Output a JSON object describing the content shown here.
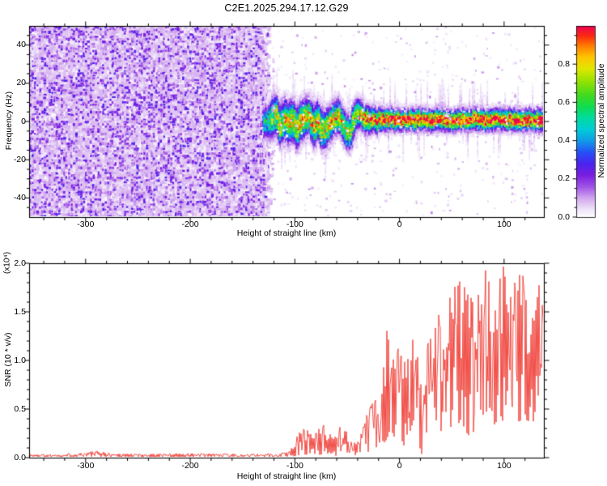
{
  "title": "C2E1.2025.294.17.12.G29",
  "figure": {
    "background": "#ffffff",
    "axis_color": "#000000"
  },
  "chart_data": [
    {
      "type": "heatmap",
      "title": "C2E1.2025.294.17.12.G29",
      "xlabel": "Height of straight line (km)",
      "ylabel": "Frequency (Hz)",
      "xlim": [
        -354,
        138
      ],
      "ylim": [
        -50,
        50
      ],
      "grid": false,
      "x_axis": {
        "ticks": [
          -300,
          -200,
          -100,
          0,
          100
        ],
        "ticklabels": [
          "-300",
          "-200",
          "-100",
          "0",
          "100"
        ],
        "minor_step": 20
      },
      "y_axis": {
        "ticks": [
          -40,
          -20,
          0,
          20,
          40
        ],
        "ticklabels": [
          "-40",
          "-20",
          "0",
          "20",
          "40"
        ],
        "minor_step": 5
      },
      "colorbar": {
        "label": "Normalized spectral amplitude",
        "range": [
          0,
          1
        ],
        "ticks": [
          0,
          0.2,
          0.4,
          0.6,
          0.8
        ],
        "ticklabels": [
          "0.0",
          "0.2",
          "0.4",
          "0.6",
          "0.8"
        ],
        "minor_step": 0.05,
        "colormap_stops": [
          [
            0.0,
            "#ffffff"
          ],
          [
            0.04,
            "#f0e6fa"
          ],
          [
            0.1,
            "#d2a8ee"
          ],
          [
            0.16,
            "#a055e6"
          ],
          [
            0.22,
            "#7a1ee0"
          ],
          [
            0.28,
            "#4c22ee"
          ],
          [
            0.34,
            "#2650f8"
          ],
          [
            0.4,
            "#129ae8"
          ],
          [
            0.46,
            "#00ccd8"
          ],
          [
            0.52,
            "#00dca0"
          ],
          [
            0.58,
            "#10dc50"
          ],
          [
            0.64,
            "#42da1e"
          ],
          [
            0.72,
            "#9ce400"
          ],
          [
            0.78,
            "#e2e600"
          ],
          [
            0.84,
            "#ffc400"
          ],
          [
            0.9,
            "#ff7a00"
          ],
          [
            0.95,
            "#fb2812"
          ],
          [
            1.0,
            "#ee0552"
          ]
        ]
      },
      "noise_region": {
        "x_range": [
          -354,
          -128
        ],
        "freq_range": [
          -50,
          50
        ],
        "amplitude_range": [
          0.0,
          0.28
        ],
        "description": "dense purple speckle noise filling full frequency band"
      },
      "signal_band": {
        "x_range": [
          -127,
          138
        ],
        "description": "wiggly band near 0 Hz; broad cyan-green core -125..-30 km, narrow red core with green halo and purple fringes from -26 km to right edge",
        "samples_km_center_halfwidth_peak": [
          [
            -126,
            0,
            5,
            0.5
          ],
          [
            -122,
            2,
            6,
            0.65
          ],
          [
            -118,
            4,
            6,
            0.72
          ],
          [
            -114,
            -1,
            6,
            0.75
          ],
          [
            -110,
            2,
            6,
            0.78
          ],
          [
            -106,
            -2,
            6,
            0.75
          ],
          [
            -102,
            1,
            6,
            0.8
          ],
          [
            -98,
            -3,
            6,
            0.76
          ],
          [
            -94,
            0,
            6,
            0.8
          ],
          [
            -90,
            2,
            5.5,
            0.78
          ],
          [
            -86,
            4,
            5.5,
            0.75
          ],
          [
            -82,
            -2,
            6,
            0.8
          ],
          [
            -78,
            1,
            5.5,
            0.78
          ],
          [
            -74,
            -3,
            6,
            0.76
          ],
          [
            -70,
            -4,
            5.5,
            0.75
          ],
          [
            -66,
            0,
            5,
            0.8
          ],
          [
            -62,
            2,
            5,
            0.8
          ],
          [
            -58,
            3,
            5,
            0.78
          ],
          [
            -54,
            -1,
            5,
            0.76
          ],
          [
            -50,
            -5,
            5,
            0.72
          ],
          [
            -47,
            -6,
            5,
            0.7
          ],
          [
            -44,
            0,
            5,
            0.78
          ],
          [
            -41,
            4,
            4.5,
            0.8
          ],
          [
            -38,
            5,
            4,
            0.82
          ],
          [
            -34,
            2,
            4,
            0.88
          ],
          [
            -30,
            1,
            4,
            0.92
          ],
          [
            -26,
            2,
            3.5,
            0.97
          ],
          [
            -22,
            1,
            3.5,
            1.0
          ],
          [
            -16,
            2,
            3.2,
            1.0
          ],
          [
            -10,
            1.5,
            3.2,
            1.0
          ],
          [
            0,
            1,
            3,
            1.0
          ],
          [
            10,
            1.5,
            3,
            1.0
          ],
          [
            25,
            1,
            3,
            1.0
          ],
          [
            40,
            1.5,
            3,
            1.0
          ],
          [
            55,
            1,
            3,
            1.0
          ],
          [
            70,
            1.5,
            3,
            1.0
          ],
          [
            85,
            1,
            3,
            1.0
          ],
          [
            100,
            1.5,
            3,
            1.0
          ],
          [
            115,
            1,
            3,
            1.0
          ],
          [
            126,
            1.5,
            3,
            1.0
          ],
          [
            138,
            1,
            3,
            1.0
          ]
        ]
      }
    },
    {
      "type": "line",
      "xlabel": "Height of straight line (km)",
      "ylabel": "SNR (10 * v/v)",
      "ylabel_scale": "(x10⁴)",
      "color": "#ef3b33",
      "xlim": [
        -354,
        138
      ],
      "ylim": [
        0,
        2.0
      ],
      "grid": false,
      "x_axis": {
        "ticks": [
          -300,
          -200,
          -100,
          0,
          100
        ],
        "ticklabels": [
          "-300",
          "-200",
          "-100",
          "0",
          "100"
        ],
        "minor_step": 20
      },
      "y_axis": {
        "ticks": [
          0,
          0.5,
          1,
          1.5,
          2
        ],
        "ticklabels": [
          "0.0",
          "0.5",
          "1.0",
          "1.5",
          "2.0"
        ],
        "minor_step": 0.1
      },
      "envelope_km_lo_hi": [
        [
          -354,
          0.005,
          0.035
        ],
        [
          -320,
          0.005,
          0.04
        ],
        [
          -300,
          0.01,
          0.06
        ],
        [
          -288,
          0.01,
          0.07
        ],
        [
          -275,
          0.005,
          0.045
        ],
        [
          -240,
          0.005,
          0.04
        ],
        [
          -200,
          0.005,
          0.045
        ],
        [
          -160,
          0.005,
          0.04
        ],
        [
          -130,
          0.005,
          0.04
        ],
        [
          -112,
          0.005,
          0.05
        ],
        [
          -104,
          0.01,
          0.09
        ],
        [
          -98,
          0.02,
          0.22
        ],
        [
          -90,
          0.03,
          0.36
        ],
        [
          -84,
          0.03,
          0.26
        ],
        [
          -76,
          0.03,
          0.38
        ],
        [
          -68,
          0.03,
          0.3
        ],
        [
          -62,
          0.02,
          0.22
        ],
        [
          -56,
          0.02,
          0.34
        ],
        [
          -50,
          0.02,
          0.28
        ],
        [
          -45,
          0.02,
          0.14
        ],
        [
          -40,
          0.03,
          0.18
        ],
        [
          -35,
          0.05,
          0.32
        ],
        [
          -30,
          0.06,
          0.5
        ],
        [
          -25,
          0.08,
          0.62
        ],
        [
          -20,
          0.1,
          0.8
        ],
        [
          -15,
          0.15,
          1.0
        ],
        [
          -11,
          0.2,
          1.58
        ],
        [
          -8,
          0.25,
          1.1
        ],
        [
          -4,
          0.2,
          1.05
        ],
        [
          0,
          0.2,
          1.2
        ],
        [
          4,
          0.1,
          0.95
        ],
        [
          8,
          0.25,
          1.15
        ],
        [
          13,
          0.3,
          1.25
        ],
        [
          18,
          0.15,
          1.0
        ],
        [
          21,
          0.02,
          0.75
        ],
        [
          24,
          0.2,
          1.1
        ],
        [
          28,
          0.3,
          1.35
        ],
        [
          33,
          0.25,
          1.5
        ],
        [
          38,
          0.3,
          1.55
        ],
        [
          43,
          0.2,
          1.45
        ],
        [
          48,
          0.3,
          1.7
        ],
        [
          53,
          0.35,
          1.8
        ],
        [
          58,
          0.3,
          1.92
        ],
        [
          63,
          0.25,
          1.75
        ],
        [
          68,
          0.2,
          1.7
        ],
        [
          72,
          0.1,
          1.6
        ],
        [
          76,
          0.15,
          1.8
        ],
        [
          80,
          0.35,
          1.9
        ],
        [
          85,
          0.45,
          2.05
        ],
        [
          90,
          0.35,
          1.9
        ],
        [
          95,
          0.3,
          1.95
        ],
        [
          100,
          0.4,
          2.0
        ],
        [
          105,
          0.35,
          1.9
        ],
        [
          110,
          0.4,
          1.85
        ],
        [
          115,
          0.35,
          1.9
        ],
        [
          120,
          0.4,
          1.88
        ],
        [
          125,
          0.35,
          1.85
        ],
        [
          129,
          0.3,
          1.6
        ],
        [
          132,
          0.5,
          1.9
        ],
        [
          135,
          0.9,
          2.02
        ],
        [
          138,
          1.0,
          2.02
        ]
      ]
    }
  ]
}
